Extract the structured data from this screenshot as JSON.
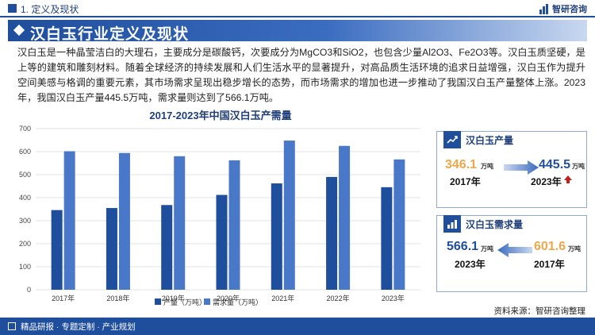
{
  "header": {
    "section_title": "1. 定义及现状",
    "brand": "智研咨询"
  },
  "banner": {
    "title": "汉白玉行业定义及现状"
  },
  "paragraph": "汉白玉是一种晶莹洁白的大理石，主要成分是碳酸钙，次要成分为MgCO3和SiO2，也包含少量Al2O3、Fe2O3等。汉白玉质坚硬，是上等的建筑和雕刻材料。随着全球经济的持续发展和人们生活水平的显著提升，对高品质生活环境的追求日益增强，汉白玉作为提升空间美感与格调的重要元素，其市场需求呈现出稳步增长的态势，而市场需求的增加也进一步推动了我国汉白玉产量整体上涨。2023年，我国汉白玉产量445.5万吨，需求量则达到了566.1万吨。",
  "chart_data": {
    "type": "bar",
    "title": "2017-2023年中国汉白玉产需量",
    "categories": [
      "2017年",
      "2018年",
      "2019年",
      "2020年",
      "2021年",
      "2022年",
      "2023年"
    ],
    "series": [
      {
        "name": "产量（万吨）",
        "color": "#1f4e9c",
        "values": [
          346.1,
          355,
          368,
          412,
          462,
          490,
          445.5
        ]
      },
      {
        "name": "需求量（万吨）",
        "color": "#4a78c8",
        "values": [
          601.6,
          594,
          580,
          562,
          648,
          625,
          566.1
        ]
      }
    ],
    "yticks": [
      0,
      100,
      200,
      300,
      400,
      500,
      600,
      700
    ],
    "ylim": [
      0,
      700
    ],
    "grid": true,
    "legend": "bottom-center"
  },
  "panels": {
    "production": {
      "title": "汉白玉产量",
      "from_value": "346.1",
      "from_unit": "万吨",
      "from_year": "2017年",
      "to_value": "445.5",
      "to_unit": "万吨",
      "to_year": "2023年",
      "from_color": "#f0a64a",
      "to_color": "#1f4e9c"
    },
    "demand": {
      "title": "汉白玉需求量",
      "left_value": "566.1",
      "left_unit": "万吨",
      "left_year": "2023年",
      "right_value": "601.6",
      "right_unit": "万吨",
      "right_year": "2017年",
      "left_color": "#1f4e9c",
      "right_color": "#f0a64a"
    }
  },
  "source": "资料来源：智研咨询整理",
  "footer": {
    "text": "精品研报 · 专题定制 · 产业规划"
  }
}
